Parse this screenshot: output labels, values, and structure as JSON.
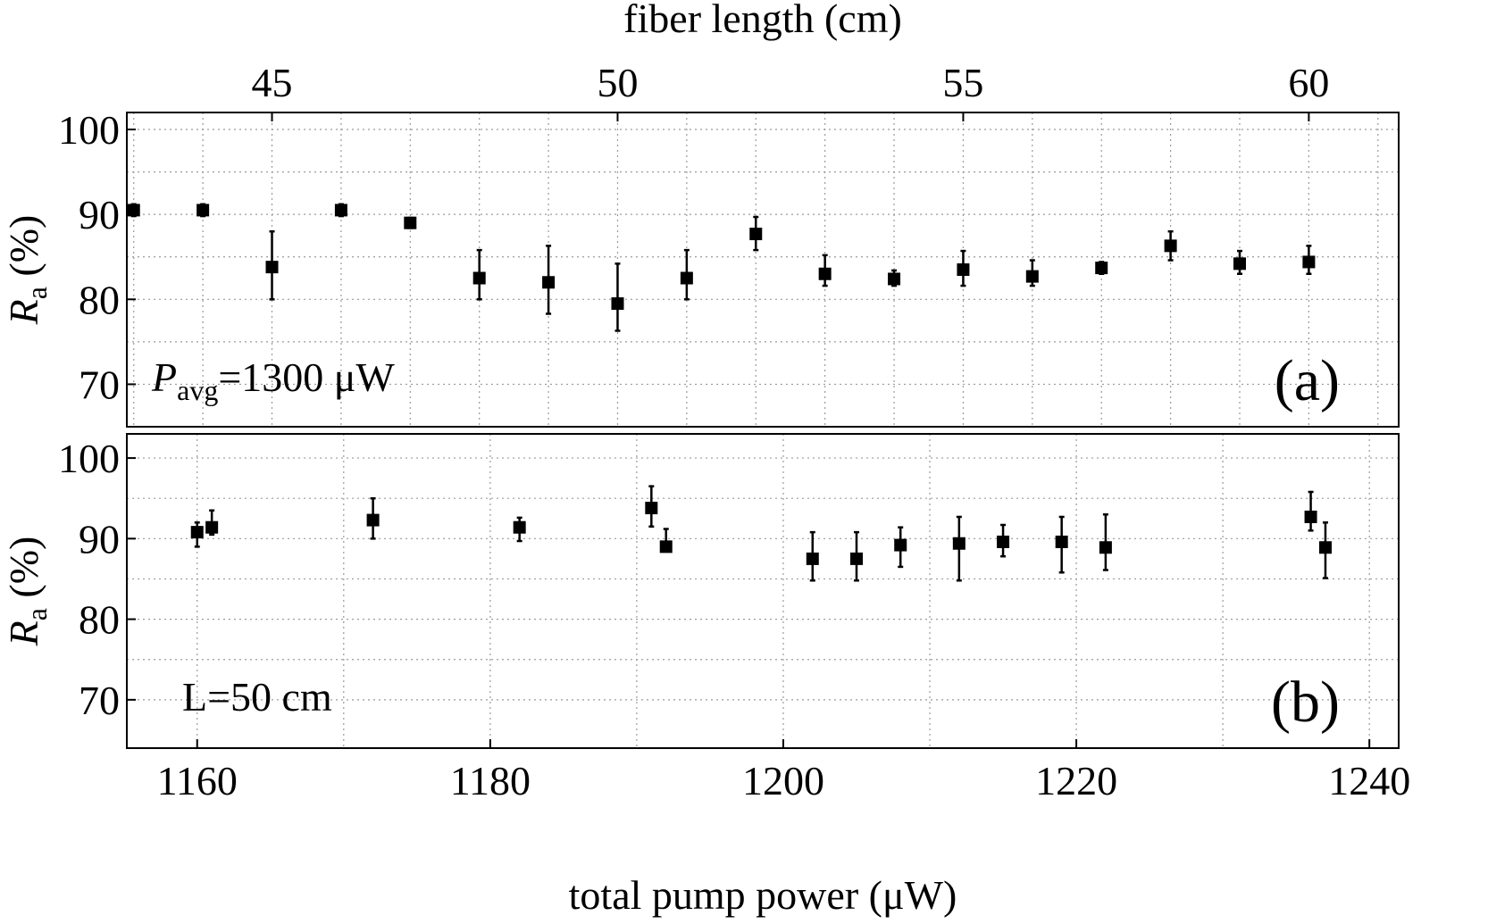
{
  "chart_data": [
    {
      "panel": "a",
      "type": "scatter",
      "label": "(a)",
      "annotation": {
        "main": "P",
        "sub": "avg",
        "rest": "=1300 μW"
      },
      "xlabel": "fiber length (cm)",
      "xlabel_position": "top",
      "ylabel": "R",
      "ylabel_sub": "a",
      "ylabel_rest": " (%)",
      "xlim": [
        42.9,
        61.3
      ],
      "ylim": [
        65,
        102
      ],
      "xticks": [
        45,
        50,
        55,
        60
      ],
      "yticks": [
        70,
        80,
        90,
        100
      ],
      "xgrid": [
        43,
        44,
        45,
        46,
        47,
        48,
        49,
        50,
        51,
        52,
        53,
        54,
        55,
        56,
        57,
        58,
        59,
        60,
        61
      ],
      "ygrid": [
        70,
        75,
        80,
        85,
        90,
        95,
        100
      ],
      "points": [
        {
          "x": 43,
          "y": 90.5,
          "lo": 89.8,
          "hi": 91.2
        },
        {
          "x": 44,
          "y": 90.5,
          "lo": 89.8,
          "hi": 91.2
        },
        {
          "x": 45,
          "y": 83.8,
          "lo": 80.0,
          "hi": 88.0
        },
        {
          "x": 46,
          "y": 90.5,
          "lo": 89.8,
          "hi": 91.2
        },
        {
          "x": 47,
          "y": 89.0,
          "lo": 88.4,
          "hi": 89.6
        },
        {
          "x": 48,
          "y": 82.5,
          "lo": 80.0,
          "hi": 85.8
        },
        {
          "x": 49,
          "y": 82.0,
          "lo": 78.3,
          "hi": 86.3
        },
        {
          "x": 50,
          "y": 79.5,
          "lo": 76.3,
          "hi": 84.2
        },
        {
          "x": 51,
          "y": 82.5,
          "lo": 80.0,
          "hi": 85.8
        },
        {
          "x": 52,
          "y": 87.7,
          "lo": 85.8,
          "hi": 89.7
        },
        {
          "x": 53,
          "y": 83.0,
          "lo": 81.6,
          "hi": 85.2
        },
        {
          "x": 54,
          "y": 82.4,
          "lo": 81.6,
          "hi": 83.4
        },
        {
          "x": 55,
          "y": 83.5,
          "lo": 81.6,
          "hi": 85.7
        },
        {
          "x": 56,
          "y": 82.7,
          "lo": 81.6,
          "hi": 84.6
        },
        {
          "x": 57,
          "y": 83.7,
          "lo": 83.0,
          "hi": 84.4
        },
        {
          "x": 58,
          "y": 86.3,
          "lo": 84.6,
          "hi": 88.0
        },
        {
          "x": 59,
          "y": 84.2,
          "lo": 83.0,
          "hi": 85.7
        },
        {
          "x": 60,
          "y": 84.4,
          "lo": 83.0,
          "hi": 86.3
        }
      ]
    },
    {
      "panel": "b",
      "type": "scatter",
      "label": "(b)",
      "annotation": {
        "main": "L=50 cm",
        "sub": "",
        "rest": ""
      },
      "xlabel": "total pump power (μW)",
      "xlabel_position": "bottom",
      "ylabel": "R",
      "ylabel_sub": "a",
      "ylabel_rest": " (%)",
      "xlim": [
        1155.2,
        1242.0
      ],
      "ylim": [
        64,
        103
      ],
      "xticks": [
        1160,
        1180,
        1200,
        1220,
        1240
      ],
      "yticks": [
        70,
        80,
        90,
        100
      ],
      "xgrid": [
        1160,
        1170,
        1180,
        1190,
        1200,
        1210,
        1220,
        1230,
        1240
      ],
      "ygrid": [
        70,
        75,
        80,
        85,
        90,
        95,
        100
      ],
      "points": [
        {
          "x": 1160,
          "y": 90.8,
          "lo": 89.0,
          "hi": 92.0
        },
        {
          "x": 1161,
          "y": 91.4,
          "lo": 90.5,
          "hi": 93.5
        },
        {
          "x": 1172,
          "y": 92.3,
          "lo": 90.0,
          "hi": 95.0
        },
        {
          "x": 1182,
          "y": 91.4,
          "lo": 89.7,
          "hi": 92.6
        },
        {
          "x": 1191,
          "y": 93.8,
          "lo": 91.5,
          "hi": 96.5
        },
        {
          "x": 1192,
          "y": 89.0,
          "lo": 88.5,
          "hi": 91.2
        },
        {
          "x": 1202,
          "y": 87.5,
          "lo": 84.8,
          "hi": 90.8
        },
        {
          "x": 1205,
          "y": 87.5,
          "lo": 84.8,
          "hi": 90.8
        },
        {
          "x": 1208,
          "y": 89.2,
          "lo": 86.5,
          "hi": 91.4
        },
        {
          "x": 1212,
          "y": 89.4,
          "lo": 84.8,
          "hi": 92.7
        },
        {
          "x": 1215,
          "y": 89.6,
          "lo": 87.8,
          "hi": 91.7
        },
        {
          "x": 1219,
          "y": 89.6,
          "lo": 85.8,
          "hi": 92.7
        },
        {
          "x": 1222,
          "y": 88.9,
          "lo": 86.1,
          "hi": 93.0
        },
        {
          "x": 1236,
          "y": 92.7,
          "lo": 91.0,
          "hi": 95.8
        },
        {
          "x": 1237,
          "y": 88.9,
          "lo": 85.1,
          "hi": 92.0
        }
      ]
    }
  ]
}
